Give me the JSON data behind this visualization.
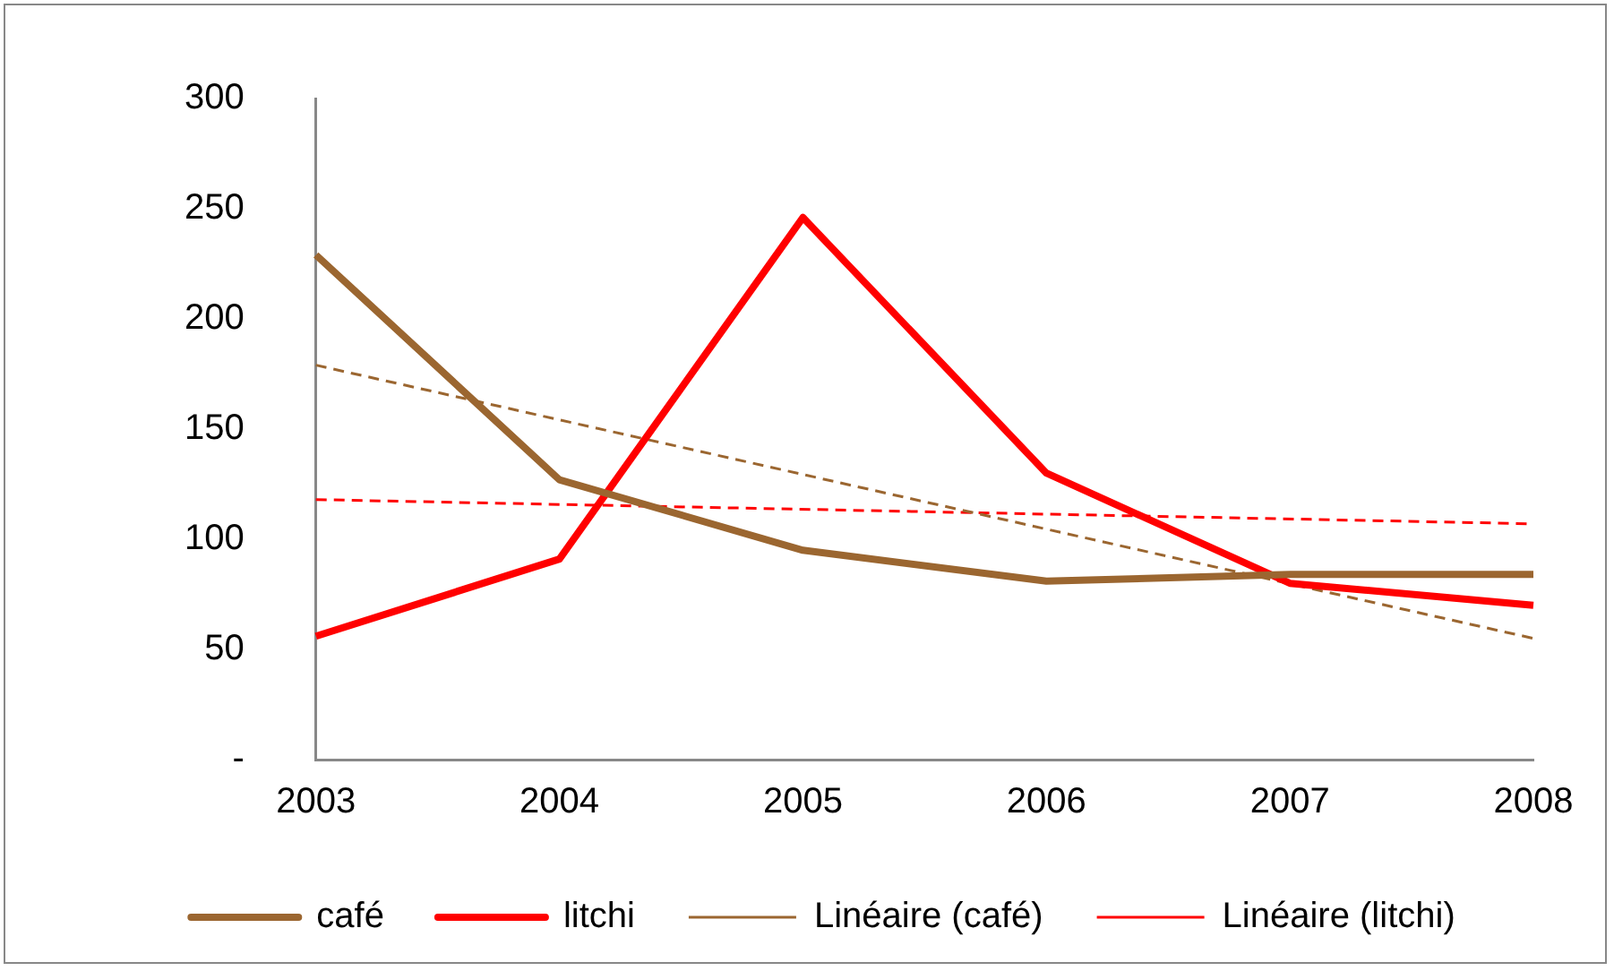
{
  "chart_data": {
    "type": "line",
    "categories": [
      "2003",
      "2004",
      "2005",
      "2006",
      "2007",
      "2008"
    ],
    "series": [
      {
        "name": "café",
        "color": "#9b6630",
        "values": [
          229,
          127,
          95,
          81,
          84,
          84
        ],
        "line_style": "solid"
      },
      {
        "name": "litchi",
        "color": "#ff0000",
        "values": [
          56,
          91,
          246,
          130,
          80,
          70
        ],
        "line_style": "solid"
      },
      {
        "name": "Linéaire (café)",
        "color": "#9b6630",
        "type": "line",
        "values": [
          179,
          null,
          null,
          null,
          null,
          55
        ],
        "line_style": "dashed"
      },
      {
        "name": "Linéaire (litchi)",
        "color": "#ff0000",
        "type": "line",
        "values": [
          118,
          null,
          null,
          null,
          null,
          107
        ],
        "line_style": "dashed"
      }
    ],
    "ylim": [
      0,
      300
    ],
    "yticks": [
      {
        "value": 0,
        "label": "-"
      },
      50,
      100,
      150,
      200,
      250,
      300
    ],
    "grid": false,
    "legend": "bottom",
    "marker": "none"
  }
}
